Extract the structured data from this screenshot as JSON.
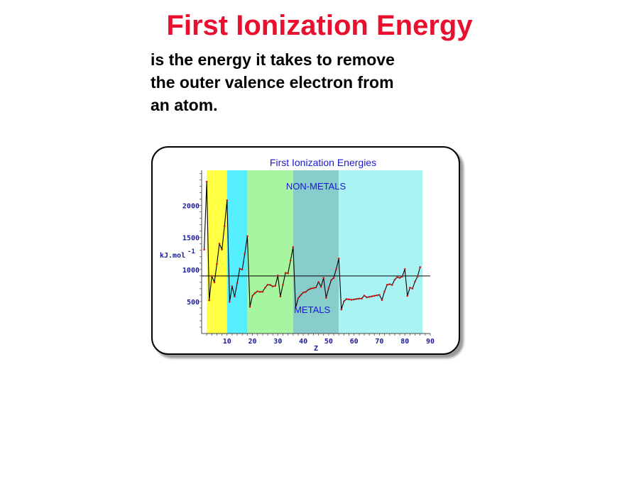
{
  "slide": {
    "title": "First Ionization Energy",
    "body_lines": [
      "is the energy it takes to remove",
      "the outer valence electron from",
      "an atom."
    ]
  },
  "chart_data": {
    "type": "line",
    "title": "First Ionization Energies",
    "xlabel": "Z",
    "ylabel": "kJ.mol",
    "ylabel_superscript": "-1",
    "xlim": [
      0,
      90
    ],
    "ylim": [
      0,
      2550
    ],
    "xticks": [
      "10",
      "20",
      "30",
      "40",
      "50",
      "60",
      "70",
      "80",
      "90"
    ],
    "yticks": [
      "500",
      "1000",
      "1500",
      "2000"
    ],
    "reference_line": 900,
    "annotations": [
      "NON-METALS",
      "METALS"
    ],
    "region_colors": [
      "#ffff44",
      "#55eeff",
      "#a8f5a0",
      "#88cccc",
      "#aaf3f3"
    ],
    "regions": [
      {
        "from": 2,
        "to": 10
      },
      {
        "from": 10,
        "to": 18
      },
      {
        "from": 18,
        "to": 36
      },
      {
        "from": 36,
        "to": 54
      },
      {
        "from": 54,
        "to": 87
      }
    ],
    "line_color": "#000000",
    "marker_color": "#dd1111",
    "x": [
      1,
      2,
      3,
      4,
      5,
      6,
      7,
      8,
      9,
      10,
      11,
      12,
      13,
      14,
      15,
      16,
      17,
      18,
      19,
      20,
      21,
      22,
      23,
      24,
      25,
      26,
      27,
      28,
      29,
      30,
      31,
      32,
      33,
      34,
      35,
      36,
      37,
      38,
      39,
      40,
      41,
      42,
      43,
      44,
      45,
      46,
      47,
      48,
      49,
      50,
      51,
      52,
      53,
      54,
      55,
      56,
      57,
      58,
      59,
      60,
      61,
      62,
      63,
      64,
      65,
      66,
      67,
      68,
      69,
      70,
      71,
      72,
      73,
      74,
      75,
      76,
      77,
      78,
      79,
      80,
      81,
      82,
      83,
      84,
      85,
      86
    ],
    "values": [
      1312,
      2372,
      520,
      899,
      801,
      1086,
      1402,
      1314,
      1681,
      2081,
      496,
      738,
      578,
      787,
      1012,
      1000,
      1251,
      1521,
      419,
      590,
      633,
      659,
      651,
      653,
      717,
      762,
      760,
      737,
      745,
      906,
      579,
      762,
      947,
      941,
      1140,
      1351,
      403,
      550,
      600,
      640,
      652,
      684,
      702,
      710,
      720,
      805,
      731,
      868,
      558,
      709,
      834,
      869,
      1008,
      1170,
      376,
      503,
      538,
      534,
      527,
      533,
      540,
      545,
      547,
      593,
      566,
      573,
      581,
      589,
      597,
      603,
      524,
      659,
      761,
      770,
      760,
      840,
      880,
      870,
      890,
      1007,
      589,
      716,
      703,
      812,
      890,
      1037
    ]
  }
}
